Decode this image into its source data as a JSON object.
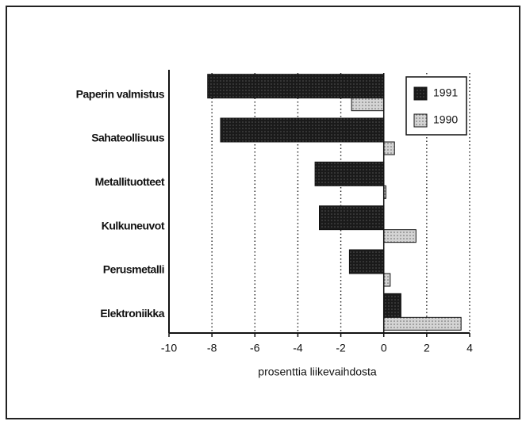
{
  "chart_data": {
    "type": "hbar",
    "xlabel": "prosenttia liikevaihdosta",
    "categories": [
      "Paperin valmistus",
      "Sahateollisuus",
      "Metallituotteet",
      "Kulkuneuvot",
      "Perusmetalli",
      "Elektroniikka"
    ],
    "series": [
      {
        "name": "1991",
        "color": "#1a1a1a",
        "values": [
          -8.2,
          -7.6,
          -3.2,
          -3.0,
          -1.6,
          0.8
        ]
      },
      {
        "name": "1990",
        "color": "#d4d4d4",
        "values": [
          -1.5,
          0.5,
          0.1,
          1.5,
          0.3,
          3.6
        ]
      }
    ],
    "xlim": [
      -10,
      4
    ],
    "xticks": [
      -10,
      -8,
      -6,
      -4,
      -2,
      0,
      2,
      4
    ],
    "grid": true,
    "legend": "upper right"
  }
}
